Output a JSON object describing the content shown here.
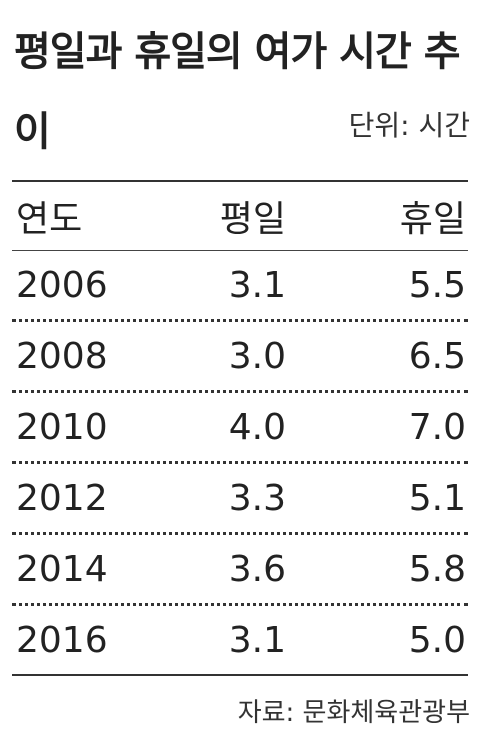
{
  "header": {
    "title": "평일과 휴일의 여가 시간 추이",
    "unit": "단위: 시간"
  },
  "table": {
    "columns": [
      "연도",
      "평일",
      "휴일"
    ],
    "rows": [
      [
        "2006",
        "3.1",
        "5.5"
      ],
      [
        "2008",
        "3.0",
        "6.5"
      ],
      [
        "2010",
        "4.0",
        "7.0"
      ],
      [
        "2012",
        "3.3",
        "5.1"
      ],
      [
        "2014",
        "3.6",
        "5.8"
      ],
      [
        "2016",
        "3.1",
        "5.0"
      ]
    ]
  },
  "footer": {
    "source": "자료: 문화체육관광부"
  }
}
